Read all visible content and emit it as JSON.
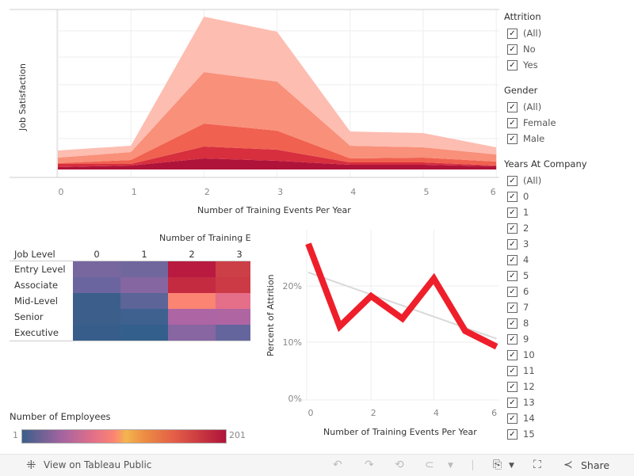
{
  "area_chart": {
    "chart_data": {
      "type": "area",
      "stacked": true,
      "ylabel": "Job Satisfaction",
      "xlabel": "Number of Training Events Per Year",
      "x": [
        0,
        1,
        2,
        3,
        4,
        5,
        6
      ],
      "ylim": [
        0,
        201
      ],
      "y_tick_labels_shown": false,
      "grid": true,
      "series": [
        {
          "color": "#b0133a",
          "values": [
            3,
            5,
            14,
            11,
            6,
            6,
            4
          ]
        },
        {
          "color": "#d72f3e",
          "values": [
            4,
            2,
            15,
            14,
            3,
            3,
            1
          ]
        },
        {
          "color": "#f06150",
          "values": [
            1,
            5,
            29,
            24,
            5,
            6,
            5
          ]
        },
        {
          "color": "#f9907a",
          "values": [
            7,
            10,
            65,
            62,
            16,
            13,
            9
          ]
        },
        {
          "color": "#fdbdb1",
          "values": [
            9,
            8,
            70,
            63,
            18,
            18,
            9
          ]
        }
      ]
    }
  },
  "heatmap": {
    "chart_data": {
      "type": "heatmap",
      "title": "Number of Training E",
      "row_header": "Job Level",
      "columns": [
        "0",
        "1",
        "2",
        "3"
      ],
      "rows": [
        {
          "label": "Entry Level",
          "colors": [
            "#78679f",
            "#70679d",
            "#b81a40",
            "#cc3f47"
          ]
        },
        {
          "label": "Associate",
          "colors": [
            "#6a659f",
            "#8566a0",
            "#c52b40",
            "#cc3a45"
          ]
        },
        {
          "label": "Mid-Level",
          "colors": [
            "#3b5f8a",
            "#5d6497",
            "#fb8473",
            "#e56e89"
          ]
        },
        {
          "label": "Senior",
          "colors": [
            "#3b5f8a",
            "#3e6190",
            "#ad65a3",
            "#ae65a2"
          ]
        },
        {
          "label": "Executive",
          "colors": [
            "#375e8b",
            "#335f8d",
            "#8766a1",
            "#65659d"
          ]
        }
      ]
    }
  },
  "legend": {
    "title": "Number of Employees",
    "min": "1",
    "max": "201"
  },
  "line_chart": {
    "chart_data": {
      "type": "line",
      "xlabel": "Number of Training Events Per Year",
      "ylabel": "Percent of Attrition",
      "x": [
        0,
        1,
        2,
        3,
        4,
        5,
        6
      ],
      "x_ticks": [
        "0",
        "2",
        "4",
        "6"
      ],
      "y_ticks": [
        "0%",
        "10%",
        "20%"
      ],
      "ylim": [
        0,
        28
      ],
      "series": [
        {
          "color": "#ee1f2a",
          "values": [
            27.5,
            12.8,
            18.2,
            14.2,
            21.3,
            12.0,
            9.2
          ]
        }
      ],
      "trend_line": {
        "color": "#d9d9d9",
        "start": 22.4,
        "end": 10.6
      }
    }
  },
  "filters": [
    {
      "title": "Attrition",
      "items": [
        "(All)",
        "No",
        "Yes"
      ]
    },
    {
      "title": "Gender",
      "items": [
        "(All)",
        "Female",
        "Male"
      ]
    },
    {
      "title": "Years At Company",
      "items": [
        "(All)",
        "0",
        "1",
        "2",
        "3",
        "4",
        "5",
        "6",
        "7",
        "8",
        "9",
        "10",
        "11",
        "12",
        "13",
        "14",
        "15"
      ]
    }
  ],
  "toolbar": {
    "view_label": "View on Tableau Public",
    "share_label": "Share"
  }
}
